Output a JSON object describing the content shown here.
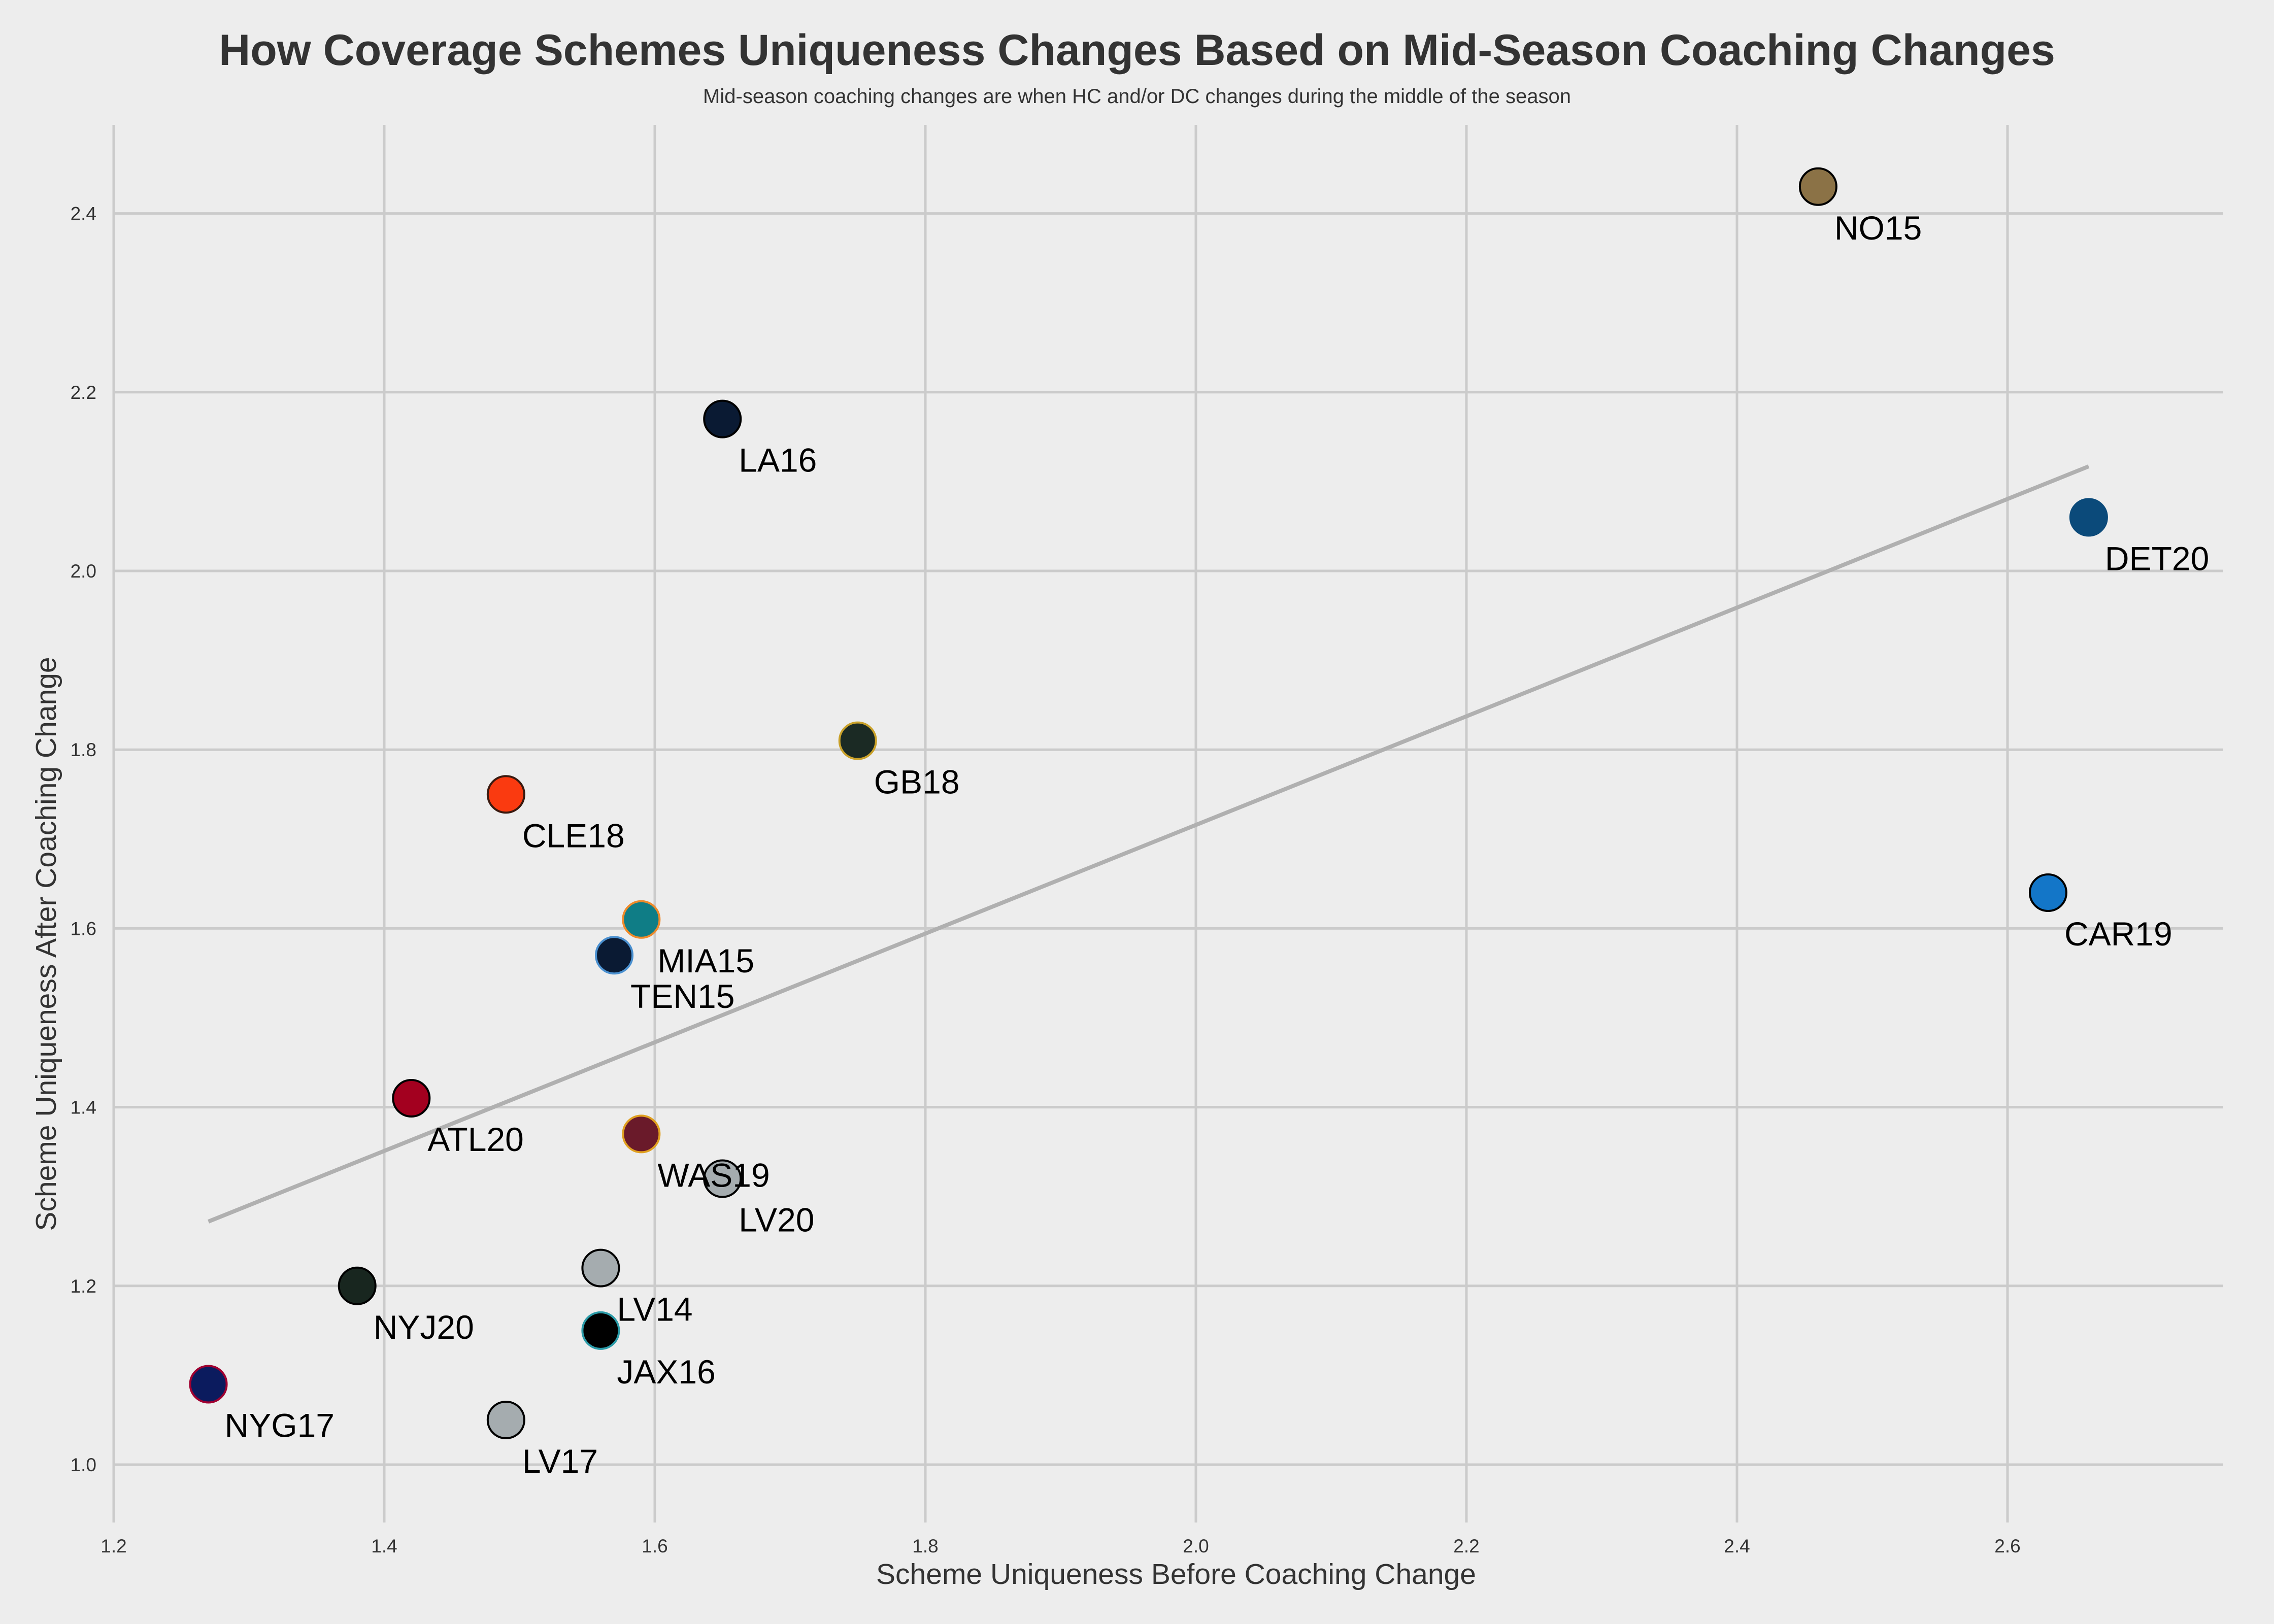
{
  "chart_data": {
    "type": "scatter",
    "title": "How Coverage Schemes Uniqueness Changes Based on Mid-Season Coaching Changes",
    "subtitle": "Mid-season coaching changes are when HC and/or DC changes during the middle of the season",
    "xlabel": "Scheme Uniqueness Before Coaching Change",
    "ylabel": "Scheme Uniqueness After Coaching Change",
    "xlim": [
      1.2,
      2.77
    ],
    "ylim": [
      0.94,
      2.5
    ],
    "xticks": [
      "1.2",
      "1.4",
      "1.6",
      "1.8",
      "2.0",
      "2.2",
      "2.4",
      "2.6"
    ],
    "yticks": [
      "1.0",
      "1.2",
      "1.4",
      "1.6",
      "1.8",
      "2.0",
      "2.2",
      "2.4"
    ],
    "grid": true,
    "trendline": {
      "x": [
        1.27,
        2.66
      ],
      "y": [
        1.272,
        2.117
      ],
      "color": "#b0b0b0"
    },
    "points": [
      {
        "label": "NO15",
        "x": 2.46,
        "y": 2.43,
        "color": "#8b7246",
        "edge": "#000000"
      },
      {
        "label": "LA16",
        "x": 1.65,
        "y": 2.17,
        "color": "#0a1a33",
        "edge": "#000000"
      },
      {
        "label": "DET20",
        "x": 2.66,
        "y": 2.06,
        "color": "#0b4a7a",
        "edge": "#0b4a7a"
      },
      {
        "label": "GB18",
        "x": 1.75,
        "y": 1.81,
        "color": "#1b2a24",
        "edge": "#c9a12a"
      },
      {
        "label": "CLE18",
        "x": 1.49,
        "y": 1.75,
        "color": "#fa3a10",
        "edge": "#3a1a10"
      },
      {
        "label": "CAR19",
        "x": 2.63,
        "y": 1.64,
        "color": "#1376c8",
        "edge": "#000000"
      },
      {
        "label": "MIA15",
        "x": 1.59,
        "y": 1.61,
        "color": "#0f7d86",
        "edge": "#f08a2a"
      },
      {
        "label": "TEN15",
        "x": 1.57,
        "y": 1.57,
        "color": "#0a1a33",
        "edge": "#4a90d0"
      },
      {
        "label": "ATL20",
        "x": 1.42,
        "y": 1.41,
        "color": "#a3001f",
        "edge": "#000000"
      },
      {
        "label": "WAS19",
        "x": 1.59,
        "y": 1.37,
        "color": "#6a1a2a",
        "edge": "#e0a020"
      },
      {
        "label": "LV20",
        "x": 1.65,
        "y": 1.32,
        "color": "#a5acaf",
        "edge": "#000000"
      },
      {
        "label": "NYJ20",
        "x": 1.38,
        "y": 1.2,
        "color": "#18261f",
        "edge": "#000000"
      },
      {
        "label": "LV14",
        "x": 1.56,
        "y": 1.22,
        "color": "#a5acaf",
        "edge": "#000000"
      },
      {
        "label": "JAX16",
        "x": 1.56,
        "y": 1.15,
        "color": "#000000",
        "edge": "#2a9ba8"
      },
      {
        "label": "NYG17",
        "x": 1.27,
        "y": 1.09,
        "color": "#0b1b5e",
        "edge": "#a00030"
      },
      {
        "label": "LV17",
        "x": 1.49,
        "y": 1.05,
        "color": "#a5acaf",
        "edge": "#000000"
      }
    ]
  },
  "colors": {
    "background": "#ededed",
    "grid": "#cbcbcb",
    "text": "#333333"
  }
}
